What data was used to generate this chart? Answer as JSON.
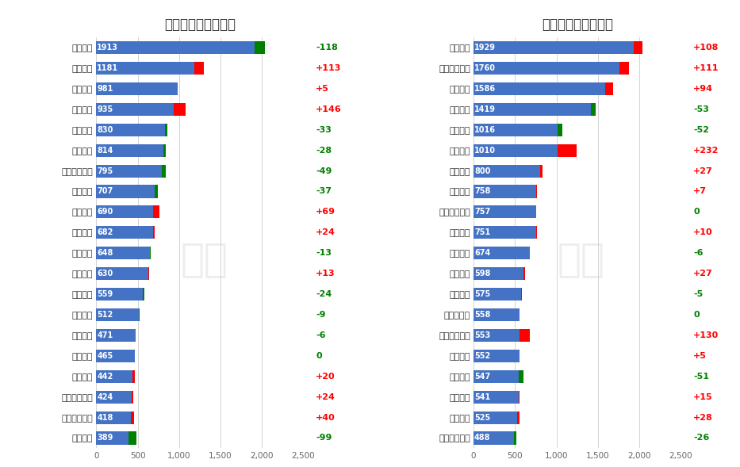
{
  "left_title": "红枣多头持仓龙虎榜",
  "right_title": "红枣空头持仓龙虎榜",
  "left_data": [
    {
      "name": "鲁证期货",
      "value": 1913,
      "change": -118
    },
    {
      "name": "广发期货",
      "value": 1181,
      "change": 113
    },
    {
      "name": "弘业期货",
      "value": 981,
      "change": 5
    },
    {
      "name": "华泰期货",
      "value": 935,
      "change": 146
    },
    {
      "name": "招金期货",
      "value": 830,
      "change": -33
    },
    {
      "name": "招商期货",
      "value": 814,
      "change": -28
    },
    {
      "name": "国泰君安期货",
      "value": 795,
      "change": -49
    },
    {
      "name": "广金期货",
      "value": 707,
      "change": -37
    },
    {
      "name": "中信期货",
      "value": 690,
      "change": 69
    },
    {
      "name": "中辉期货",
      "value": 682,
      "change": 24
    },
    {
      "name": "天富期货",
      "value": 648,
      "change": -13
    },
    {
      "name": "安粮期货",
      "value": 630,
      "change": 13
    },
    {
      "name": "浙商期货",
      "value": 559,
      "change": -24
    },
    {
      "name": "瑞奇期货",
      "value": 512,
      "change": -9
    },
    {
      "name": "徽商期货",
      "value": 471,
      "change": -6
    },
    {
      "name": "中粮期货",
      "value": 465,
      "change": 0
    },
    {
      "name": "宏源期货",
      "value": 442,
      "change": 20
    },
    {
      "name": "中信建投期货",
      "value": 424,
      "change": 24
    },
    {
      "name": "方正中期期货",
      "value": 418,
      "change": 40
    },
    {
      "name": "华安期货",
      "value": 389,
      "change": -99
    }
  ],
  "right_data": [
    {
      "name": "中信期货",
      "value": 1929,
      "change": 108
    },
    {
      "name": "国泰君安期货",
      "value": 1760,
      "change": 111
    },
    {
      "name": "华泰期货",
      "value": 1586,
      "change": 94
    },
    {
      "name": "浙商期货",
      "value": 1419,
      "change": -53
    },
    {
      "name": "鲁证期货",
      "value": 1016,
      "change": -52
    },
    {
      "name": "中财期货",
      "value": 1010,
      "change": 232
    },
    {
      "name": "五矿期货",
      "value": 800,
      "change": 27
    },
    {
      "name": "银河期货",
      "value": 758,
      "change": 7
    },
    {
      "name": "物产中大期货",
      "value": 757,
      "change": 0
    },
    {
      "name": "中粮期货",
      "value": 751,
      "change": 10
    },
    {
      "name": "格林期货",
      "value": 674,
      "change": -6
    },
    {
      "name": "永安期货",
      "value": 598,
      "change": 27
    },
    {
      "name": "东兴期货",
      "value": 575,
      "change": -5
    },
    {
      "name": "云财富期货",
      "value": 558,
      "change": 0
    },
    {
      "name": "国投安信期货",
      "value": 553,
      "change": 130
    },
    {
      "name": "宝城期货",
      "value": 552,
      "change": 5
    },
    {
      "name": "先锋期货",
      "value": 547,
      "change": -51
    },
    {
      "name": "东证期货",
      "value": 541,
      "change": 15
    },
    {
      "name": "宏源期货",
      "value": 525,
      "change": 28
    },
    {
      "name": "方正中期期货",
      "value": 488,
      "change": -26
    }
  ],
  "bar_color": "#4472C4",
  "increase_color": "#FF0000",
  "decrease_color": "#008000",
  "zero_color": "#008000",
  "increase_text_color": "#FF0000",
  "decrease_text_color": "#008000",
  "zero_text_color": "#008000",
  "xlim": [
    0,
    2500
  ],
  "xticks": [
    0,
    500,
    1000,
    1500,
    2000,
    2500
  ],
  "background_color": "#FFFFFF",
  "watermark": "上期"
}
